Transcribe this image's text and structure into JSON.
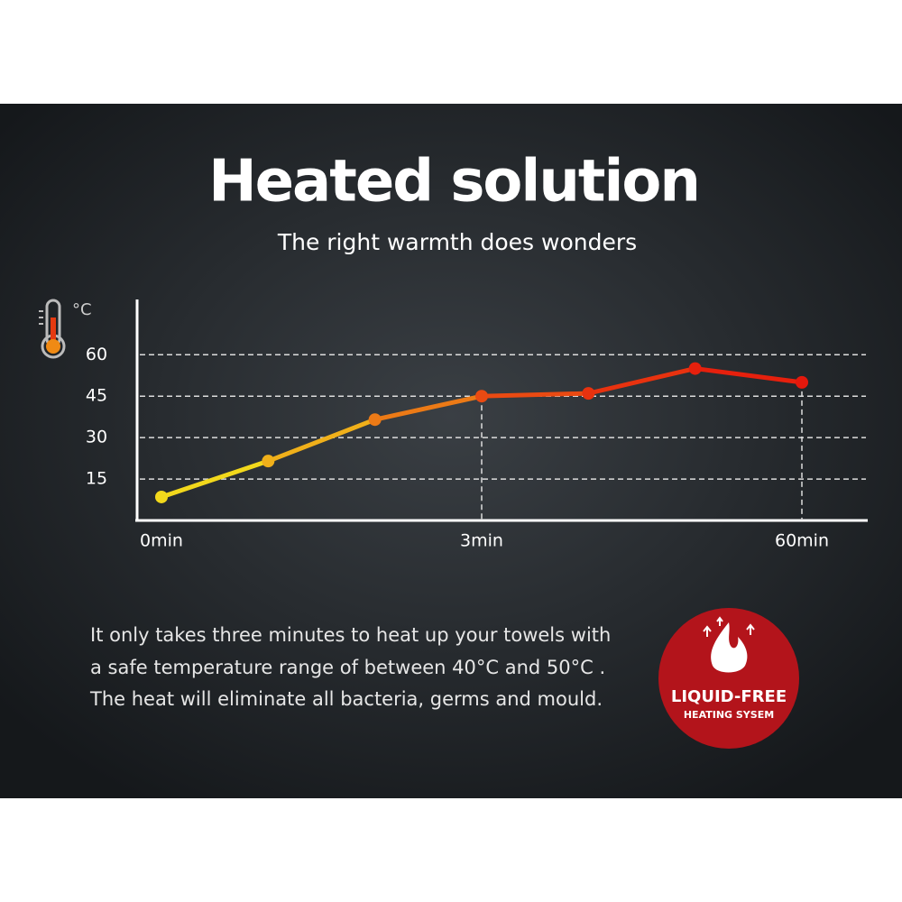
{
  "header": {
    "title": "Heated solution",
    "subtitle": "The right warmth does wonders"
  },
  "chart_data": {
    "type": "line",
    "y_unit": "°C",
    "categories": [
      "0min",
      null,
      null,
      "3min",
      null,
      null,
      "60min"
    ],
    "series": [
      {
        "values": [
          8.5,
          21.5,
          36.5,
          45,
          46,
          55,
          50
        ],
        "colors": [
          "#f2d81c",
          "#f0b01a",
          "#ec7a16",
          "#ea4a12",
          "#e8320f",
          "#e6200d",
          "#e4180c"
        ]
      }
    ],
    "ylim": [
      0,
      80
    ],
    "yticks": [
      15,
      30,
      45,
      60
    ],
    "grid": true
  },
  "body": {
    "lines": [
      "It only takes three minutes to heat up your towels with",
      "a safe temperature range of between 40°C and 50°C .",
      "The heat will eliminate all bacteria, germs and mould."
    ]
  },
  "badge": {
    "title": "LIQUID-FREE",
    "subtitle": "HEATING SYSEM"
  }
}
